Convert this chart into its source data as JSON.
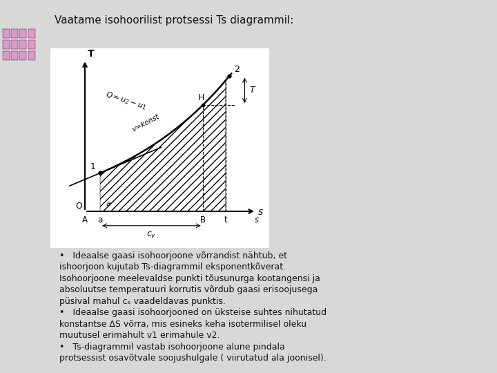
{
  "title": "Vaatame isohoorilist protsessi Ts diagrammil:",
  "bg_color": "#d8d8d8",
  "left_bar_color": "#7a0045",
  "body_bg": "#e8e8e8",
  "text_color": "#111111",
  "lines": [
    [
      "•",
      "   Ideaalse gaasi isohoorjoone võrrandist nähtub, et"
    ],
    [
      "",
      "ishoorjoon kujutab Ts-diagrammil eksponentkõverat."
    ],
    [
      "",
      "Isohoorjoone meelevaldse punkti tõusunurga kootangensi ja"
    ],
    [
      "",
      "absoluutse temperatuuri korrutis võrdub gaasi erisoojusega"
    ],
    [
      "",
      "püsival mahul cₑ vaadeldavas punktis."
    ],
    [
      "•",
      "   Ideaalse gaasi isohoorjooned on üksteise suhtes nihutatud"
    ],
    [
      "",
      "konstantse ΔS võrra, mis esineks keha isotermilisel oleku"
    ],
    [
      "",
      "muutusel erimahult v1 erimahule v2."
    ],
    [
      "•",
      "   Ts-diagrammil vastab isohoorjoone alune pindala"
    ],
    [
      "",
      "protsessist osavõtvale soojushulgale ( viirutatud ala joonisel)."
    ]
  ],
  "diag_ox": 1.8,
  "diag_oy": 0.8,
  "diag_sa": 2.6,
  "diag_sB": 8.0,
  "diag_st": 9.2,
  "diag_T1": 3.2,
  "diag_T2": 9.0,
  "diag_xlim": 11.5,
  "diag_ylim": 11.0
}
